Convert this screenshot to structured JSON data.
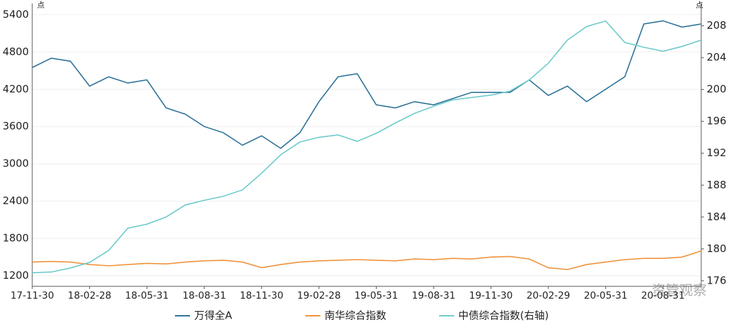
{
  "chart_data": {
    "type": "line",
    "y_unit": "点",
    "y2_unit": "点",
    "watermark": "资管观察",
    "grid": true,
    "categories": [
      "17-11-30",
      null,
      null,
      "18-02-28",
      null,
      null,
      "18-05-31",
      null,
      null,
      "18-08-31",
      null,
      null,
      "18-11-30",
      null,
      null,
      "19-02-28",
      null,
      null,
      "19-05-31",
      null,
      null,
      "19-08-31",
      null,
      null,
      "19-11-30",
      null,
      null,
      "20-02-29",
      null,
      null,
      "20-05-31",
      null,
      null,
      "20-08-31",
      null,
      null
    ],
    "ylim": [
      1030,
      5580
    ],
    "yticks": [
      1200,
      1800,
      2400,
      3000,
      3600,
      4200,
      4800,
      5400
    ],
    "y2lim": [
      175.3,
      210.8
    ],
    "y2ticks": [
      176,
      180,
      184,
      188,
      192,
      196,
      200,
      204,
      208
    ],
    "series": [
      {
        "name": "万得全A",
        "color": "#2b7197",
        "values": [
          4550,
          4700,
          4650,
          4250,
          4400,
          4300,
          4350,
          3900,
          3800,
          3600,
          3500,
          3300,
          3450,
          3250,
          3500,
          4000,
          4400,
          4450,
          3950,
          3900,
          4000,
          3950,
          4050,
          4150,
          4150,
          4150,
          4350,
          4100,
          4250,
          4000,
          4200,
          4400,
          5250,
          5300,
          5200,
          5250
        ]
      },
      {
        "name": "南华综合指数",
        "color": "#f0913a",
        "values": [
          1420,
          1430,
          1420,
          1380,
          1360,
          1380,
          1400,
          1390,
          1420,
          1440,
          1450,
          1420,
          1330,
          1380,
          1420,
          1440,
          1450,
          1460,
          1450,
          1440,
          1470,
          1460,
          1480,
          1470,
          1500,
          1510,
          1470,
          1330,
          1300,
          1380,
          1420,
          1460,
          1480,
          1480,
          1500,
          1600
        ]
      },
      {
        "name": "中债综合指数(右轴)",
        "color": "#6ccaca",
        "axis": "y2",
        "values": [
          177.0,
          177.1,
          177.6,
          178.3,
          179.8,
          182.6,
          183.1,
          184.0,
          185.5,
          186.1,
          186.6,
          187.4,
          189.5,
          191.8,
          193.4,
          194.0,
          194.3,
          193.5,
          194.5,
          195.8,
          197.0,
          197.9,
          198.7,
          199.0,
          199.3,
          199.8,
          201.2,
          203.3,
          206.2,
          207.9,
          208.6,
          205.9,
          205.3,
          204.8,
          205.4,
          206.2
        ]
      }
    ]
  }
}
